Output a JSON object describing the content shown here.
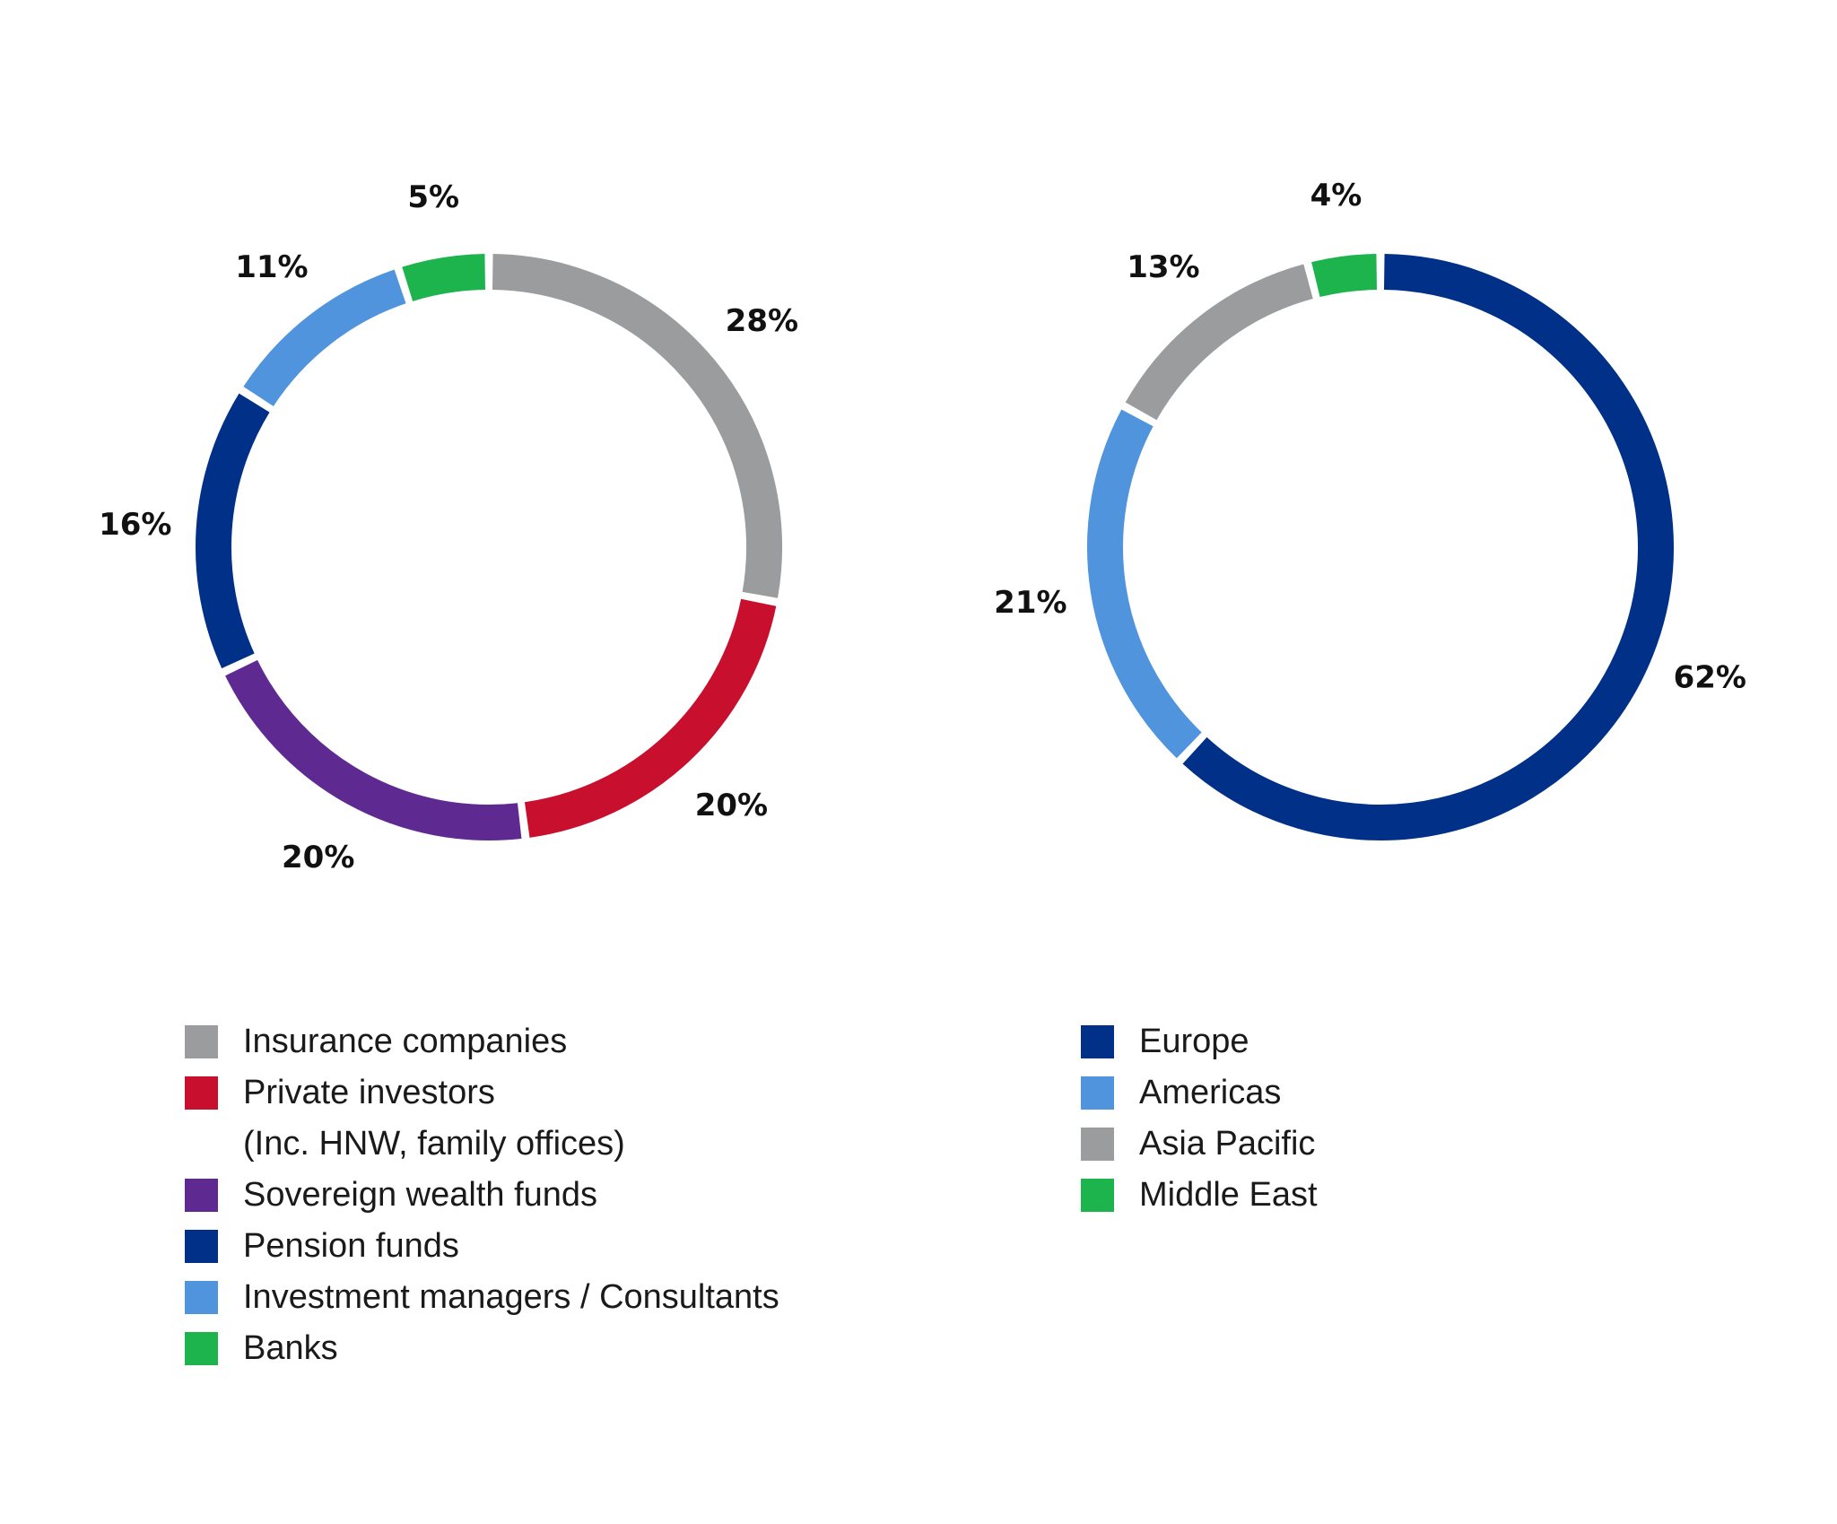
{
  "chart_data": [
    {
      "type": "pie",
      "variant": "donut",
      "title": "",
      "categories": [
        "Insurance companies",
        "Private investors (Inc. HNW, family offices)",
        "Sovereign wealth funds",
        "Pension funds",
        "Investment managers / Consultants",
        "Banks"
      ],
      "values": [
        28,
        20,
        20,
        16,
        11,
        5
      ],
      "labels": [
        "28%",
        "20%",
        "20%",
        "16%",
        "11%",
        "5%"
      ],
      "colors": [
        "#9b9c9e",
        "#c8102e",
        "#5e2a92",
        "#003087",
        "#4f94dc",
        "#1db44d"
      ],
      "legend": {
        "placement": "bottom-left",
        "items": [
          {
            "lines": [
              "Insurance companies"
            ],
            "color": "#9b9c9e"
          },
          {
            "lines": [
              "Private investors",
              "(Inc. HNW, family offices)"
            ],
            "color": "#c8102e"
          },
          {
            "lines": [
              "Sovereign wealth funds"
            ],
            "color": "#5e2a92"
          },
          {
            "lines": [
              "Pension funds"
            ],
            "color": "#003087"
          },
          {
            "lines": [
              "Investment managers / Consultants"
            ],
            "color": "#4f94dc"
          },
          {
            "lines": [
              "Banks"
            ],
            "color": "#1db44d"
          }
        ]
      }
    },
    {
      "type": "pie",
      "variant": "donut",
      "title": "",
      "categories": [
        "Europe",
        "Americas",
        "Asia Pacific",
        "Middle East"
      ],
      "values": [
        62,
        21,
        13,
        4
      ],
      "labels": [
        "62%",
        "21%",
        "13%",
        "4%"
      ],
      "colors": [
        "#003087",
        "#4f94dc",
        "#9b9c9e",
        "#1db44d"
      ],
      "legend": {
        "placement": "bottom-left",
        "items": [
          {
            "lines": [
              "Europe"
            ],
            "color": "#003087"
          },
          {
            "lines": [
              "Americas"
            ],
            "color": "#4f94dc"
          },
          {
            "lines": [
              "Asia Pacific"
            ],
            "color": "#9b9c9e"
          },
          {
            "lines": [
              "Middle East"
            ],
            "color": "#1db44d"
          }
        ]
      }
    }
  ]
}
